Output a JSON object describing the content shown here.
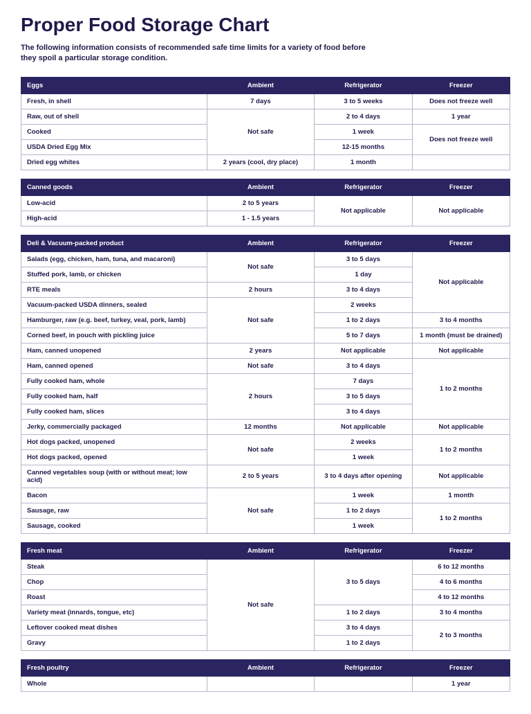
{
  "title": "Proper Food Storage Chart",
  "subtitle": "The following information consists of recommended safe time limits for a variety of food before they spoil a particular storage condition.",
  "colors": {
    "header_bg": "#2a2560",
    "header_text": "#ffffff",
    "text": "#1f1a4a",
    "border": "#b8b5c9",
    "page_bg": "#ffffff"
  },
  "columns": [
    "Ambient",
    "Refrigerator",
    "Freezer"
  ],
  "sections": [
    {
      "name": "Eggs",
      "rows": [
        {
          "label": "Fresh, in shell",
          "ambient": "7 days",
          "refrigerator": "3 to 5 weeks",
          "freezer": "Does not freeze well"
        },
        {
          "label": "Raw, out of shell",
          "ambient": {
            "span": 3,
            "text": "Not safe"
          },
          "refrigerator": "2 to 4 days",
          "freezer": "1 year"
        },
        {
          "label": "Cooked",
          "refrigerator": "1 week",
          "freezer": {
            "span": 2,
            "text": "Does not freeze well"
          }
        },
        {
          "label": "USDA Dried Egg Mix",
          "refrigerator": "12-15 months"
        },
        {
          "label": "Dried egg whites",
          "ambient": "2 years (cool, dry place)",
          "refrigerator": "1 month"
        }
      ]
    },
    {
      "name": "Canned goods",
      "rows": [
        {
          "label": "Low-acid",
          "ambient": "2 to 5 years",
          "refrigerator": {
            "span": 2,
            "text": "Not applicable"
          },
          "freezer": {
            "span": 2,
            "text": "Not applicable"
          }
        },
        {
          "label": "High-acid",
          "ambient": "1 - 1.5 years"
        }
      ]
    },
    {
      "name": "Deli & Vacuum-packed product",
      "rows": [
        {
          "label": "Salads (egg, chicken, ham, tuna, and macaroni)",
          "ambient": {
            "span": 2,
            "text": "Not safe"
          },
          "refrigerator": "3 to 5 days",
          "freezer": {
            "span": 4,
            "text": "Not applicable"
          }
        },
        {
          "label": "Stuffed pork, lamb, or chicken",
          "refrigerator": "1 day"
        },
        {
          "label": "RTE meals",
          "ambient": "2 hours",
          "refrigerator": "3 to 4 days"
        },
        {
          "label": "Vacuum-packed USDA dinners, sealed",
          "ambient": {
            "span": 3,
            "text": "Not safe"
          },
          "refrigerator": "2 weeks"
        },
        {
          "label": "Hamburger, raw (e.g. beef, turkey, veal, pork, lamb)",
          "refrigerator": "1 to 2 days",
          "freezer": "3 to 4 months"
        },
        {
          "label": "Corned beef, in pouch with pickling juice",
          "refrigerator": "5 to 7 days",
          "freezer": "1 month (must be drained)"
        },
        {
          "label": "Ham, canned unopened",
          "ambient": "2 years",
          "refrigerator": "Not applicable",
          "freezer": "Not applicable"
        },
        {
          "label": "Ham, canned opened",
          "ambient": "Not safe",
          "refrigerator": "3 to 4 days",
          "freezer": {
            "span": 4,
            "text": "1 to 2 months"
          }
        },
        {
          "label": "Fully cooked ham, whole",
          "ambient": {
            "span": 3,
            "text": "2 hours"
          },
          "refrigerator": "7 days"
        },
        {
          "label": "Fully cooked ham, half",
          "refrigerator": "3 to 5 days"
        },
        {
          "label": "Fully cooked ham, slices",
          "refrigerator": "3 to 4 days"
        },
        {
          "label": "Jerky, commercially packaged",
          "ambient": "12 months",
          "refrigerator": "Not applicable",
          "freezer": "Not applicable"
        },
        {
          "label": "Hot dogs packed, unopened",
          "ambient": {
            "span": 2,
            "text": "Not safe"
          },
          "refrigerator": "2 weeks",
          "freezer": {
            "span": 2,
            "text": "1 to 2 months"
          }
        },
        {
          "label": "Hot dogs packed, opened",
          "refrigerator": "1 week"
        },
        {
          "label": "Canned vegetables soup (with or without meat; low acid)",
          "ambient": "2 to 5 years",
          "refrigerator": "3 to 4 days after opening",
          "freezer": "Not applicable"
        },
        {
          "label": "Bacon",
          "ambient": {
            "span": 3,
            "text": "Not safe"
          },
          "refrigerator": "1 week",
          "freezer": "1 month"
        },
        {
          "label": "Sausage, raw",
          "refrigerator": "1 to 2 days",
          "freezer": {
            "span": 2,
            "text": "1 to 2 months"
          }
        },
        {
          "label": "Sausage, cooked",
          "refrigerator": "1 week"
        }
      ]
    },
    {
      "name": "Fresh meat",
      "rows": [
        {
          "label": "Steak",
          "ambient": {
            "span": 6,
            "text": "Not safe"
          },
          "refrigerator": {
            "span": 3,
            "text": "3 to 5 days"
          },
          "freezer": "6 to 12 months"
        },
        {
          "label": "Chop",
          "freezer": "4 to 6 months"
        },
        {
          "label": "Roast",
          "freezer": "4 to 12 months"
        },
        {
          "label": "Variety meat (innards, tongue, etc)",
          "refrigerator": "1 to 2 days",
          "freezer": "3 to 4 months"
        },
        {
          "label": "Leftover cooked meat dishes",
          "refrigerator": "3 to 4 days",
          "freezer": {
            "span": 2,
            "text": "2 to 3 months"
          }
        },
        {
          "label": "Gravy",
          "refrigerator": "1 to 2 days"
        }
      ]
    },
    {
      "name": "Fresh poultry",
      "rows": [
        {
          "label": "Whole",
          "ambient": "",
          "refrigerator": "",
          "freezer": "1 year"
        }
      ]
    }
  ]
}
